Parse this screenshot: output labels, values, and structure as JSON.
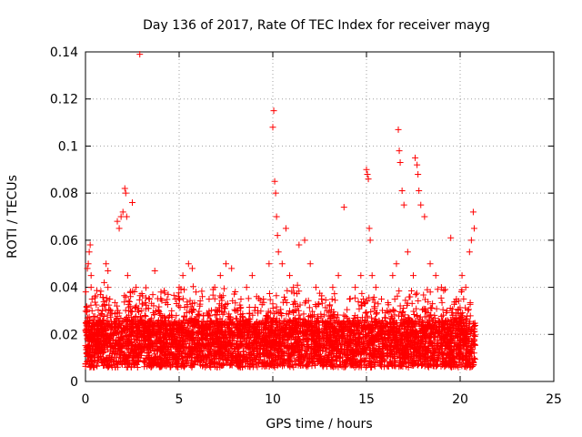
{
  "chart_data": {
    "type": "scatter",
    "title": "Day 136 of 2017, Rate Of TEC Index for receiver mayg",
    "xlabel": "GPS time / hours",
    "ylabel": "ROTI / TECUs",
    "xlim": [
      0,
      25
    ],
    "ylim": [
      0,
      0.14
    ],
    "x_ticks": [
      "0",
      "5",
      "10",
      "15",
      "20",
      "25"
    ],
    "y_ticks": [
      "0",
      "0.02",
      "0.04",
      "0.06",
      "0.08",
      "0.1",
      "0.12",
      "0.14"
    ],
    "grid": true,
    "marker": "plus",
    "color": "#ff0000",
    "series": [
      {
        "x": [
          0.05,
          0.1,
          0.15,
          0.2,
          0.25,
          0.3,
          0.35,
          0.4,
          0.2,
          0.25,
          0.3,
          0.3,
          0.35,
          0.5,
          0.6,
          0.7,
          0.8,
          0.9,
          1.0,
          1.1,
          1.2,
          1.2,
          1.3,
          1.35,
          1.5,
          1.7,
          1.8,
          1.9,
          2.0,
          2.1,
          2.15,
          2.2,
          2.25,
          2.3,
          2.5,
          2.7,
          2.9,
          3.0,
          3.2,
          3.5,
          3.7,
          3.9,
          4.2,
          4.4,
          4.6,
          4.8,
          5.0,
          5.2,
          5.5,
          5.7,
          5.9,
          6.1,
          6.3,
          6.6,
          6.9,
          7.2,
          7.5,
          7.8,
          8.0,
          8.3,
          8.6,
          8.9,
          9.2,
          9.5,
          9.8,
          10.0,
          10.05,
          10.1,
          10.15,
          10.2,
          10.25,
          10.3,
          10.5,
          10.7,
          10.9,
          11.1,
          11.4,
          11.7,
          12.0,
          12.3,
          12.6,
          12.9,
          13.2,
          13.5,
          13.8,
          14.1,
          14.4,
          14.7,
          15.0,
          15.05,
          15.1,
          15.15,
          15.2,
          15.3,
          15.5,
          15.8,
          16.1,
          16.4,
          16.6,
          16.7,
          16.75,
          16.8,
          16.9,
          17.0,
          17.2,
          17.5,
          17.6,
          17.7,
          17.75,
          17.8,
          17.9,
          18.1,
          18.4,
          18.7,
          19.0,
          19.3,
          19.5,
          19.8,
          20.1,
          20.3,
          20.5,
          20.6,
          20.7,
          20.75
        ],
        "y": [
          0.012,
          0.048,
          0.05,
          0.055,
          0.058,
          0.04,
          0.03,
          0.02,
          0.015,
          0.011,
          0.01,
          0.045,
          0.035,
          0.02,
          0.018,
          0.015,
          0.025,
          0.03,
          0.042,
          0.05,
          0.04,
          0.047,
          0.035,
          0.03,
          0.02,
          0.068,
          0.065,
          0.07,
          0.072,
          0.082,
          0.08,
          0.07,
          0.045,
          0.03,
          0.076,
          0.04,
          0.139,
          0.03,
          0.025,
          0.02,
          0.047,
          0.03,
          0.025,
          0.02,
          0.03,
          0.035,
          0.04,
          0.045,
          0.05,
          0.048,
          0.038,
          0.032,
          0.028,
          0.035,
          0.04,
          0.045,
          0.05,
          0.048,
          0.03,
          0.035,
          0.04,
          0.045,
          0.03,
          0.035,
          0.05,
          0.108,
          0.115,
          0.085,
          0.08,
          0.07,
          0.062,
          0.055,
          0.05,
          0.065,
          0.045,
          0.04,
          0.058,
          0.06,
          0.05,
          0.04,
          0.035,
          0.03,
          0.04,
          0.045,
          0.074,
          0.035,
          0.04,
          0.045,
          0.09,
          0.088,
          0.086,
          0.065,
          0.06,
          0.045,
          0.04,
          0.035,
          0.03,
          0.045,
          0.05,
          0.107,
          0.098,
          0.093,
          0.081,
          0.075,
          0.055,
          0.045,
          0.095,
          0.092,
          0.088,
          0.081,
          0.075,
          0.07,
          0.05,
          0.045,
          0.04,
          0.03,
          0.061,
          0.035,
          0.045,
          0.04,
          0.055,
          0.06,
          0.072,
          0.065
        ]
      }
    ]
  }
}
